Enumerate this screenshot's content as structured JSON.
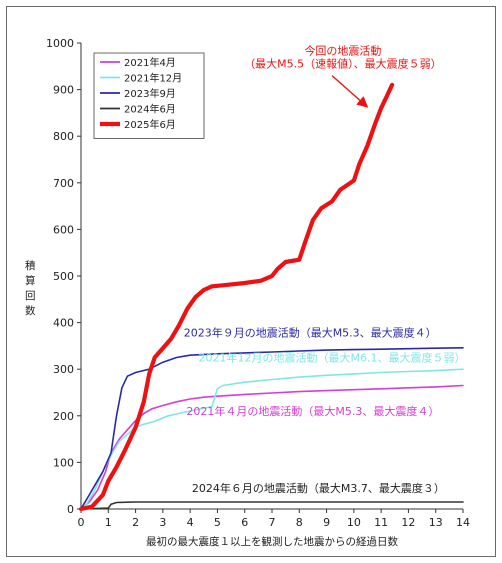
{
  "chart_data": {
    "type": "line",
    "xlabel": "最初の最大震度１以上を観測した地震からの経過日数",
    "ylabel": "積算回数",
    "xlim": [
      0,
      14
    ],
    "ylim": [
      0,
      1000
    ],
    "x_ticks": [
      "0",
      "1",
      "2",
      "3",
      "4",
      "5",
      "6",
      "7",
      "8",
      "9",
      "10",
      "11",
      "12",
      "13",
      "14"
    ],
    "y_ticks": [
      "0",
      "100",
      "200",
      "300",
      "400",
      "500",
      "600",
      "700",
      "800",
      "900",
      "1000"
    ],
    "grid": false,
    "legend_position": "top-left",
    "series": [
      {
        "name": "2021年4月",
        "color": "#d63cd6",
        "points": [
          [
            0,
            0
          ],
          [
            0.1,
            5
          ],
          [
            0.3,
            15
          ],
          [
            0.6,
            40
          ],
          [
            0.9,
            80
          ],
          [
            1.1,
            120
          ],
          [
            1.4,
            150
          ],
          [
            1.7,
            170
          ],
          [
            2.0,
            190
          ],
          [
            2.3,
            205
          ],
          [
            2.6,
            215
          ],
          [
            3.0,
            222
          ],
          [
            3.5,
            230
          ],
          [
            4.0,
            236
          ],
          [
            4.5,
            240
          ],
          [
            5.0,
            242
          ],
          [
            6.0,
            246
          ],
          [
            7.0,
            249
          ],
          [
            8.0,
            252
          ],
          [
            9.0,
            254
          ],
          [
            10.0,
            256
          ],
          [
            11.0,
            258
          ],
          [
            12.0,
            260
          ],
          [
            13.0,
            262
          ],
          [
            14.0,
            265
          ]
        ]
      },
      {
        "name": "2021年12月",
        "color": "#7fe6e6",
        "points": [
          [
            0,
            0
          ],
          [
            0.2,
            10
          ],
          [
            0.5,
            40
          ],
          [
            0.8,
            80
          ],
          [
            1.1,
            115
          ],
          [
            1.4,
            145
          ],
          [
            1.7,
            160
          ],
          [
            2.0,
            175
          ],
          [
            2.3,
            182
          ],
          [
            2.7,
            188
          ],
          [
            3.2,
            200
          ],
          [
            3.8,
            208
          ],
          [
            4.3,
            214
          ],
          [
            4.8,
            220
          ],
          [
            4.9,
            240
          ],
          [
            5.0,
            258
          ],
          [
            5.2,
            265
          ],
          [
            6.0,
            272
          ],
          [
            7.0,
            278
          ],
          [
            8.0,
            283
          ],
          [
            9.0,
            287
          ],
          [
            10.0,
            290
          ],
          [
            11.0,
            293
          ],
          [
            12.0,
            295
          ],
          [
            13.0,
            297
          ],
          [
            14.0,
            300
          ]
        ]
      },
      {
        "name": "2023年9月",
        "color": "#2a2aa8",
        "points": [
          [
            0,
            0
          ],
          [
            0.1,
            10
          ],
          [
            0.3,
            30
          ],
          [
            0.5,
            50
          ],
          [
            0.8,
            80
          ],
          [
            1.1,
            120
          ],
          [
            1.3,
            200
          ],
          [
            1.5,
            260
          ],
          [
            1.7,
            285
          ],
          [
            2.0,
            293
          ],
          [
            2.5,
            300
          ],
          [
            3.0,
            315
          ],
          [
            3.5,
            325
          ],
          [
            4.0,
            330
          ],
          [
            5.0,
            333
          ],
          [
            6.0,
            335
          ],
          [
            7.0,
            337
          ],
          [
            8.0,
            339
          ],
          [
            9.0,
            341
          ],
          [
            10.0,
            342
          ],
          [
            11.0,
            343
          ],
          [
            12.0,
            344
          ],
          [
            13.0,
            345
          ],
          [
            14.0,
            346
          ]
        ]
      },
      {
        "name": "2024年6月",
        "color": "#333333",
        "points": [
          [
            0,
            0
          ],
          [
            1.0,
            2
          ],
          [
            1.1,
            10
          ],
          [
            1.3,
            14
          ],
          [
            2.0,
            15
          ],
          [
            14.0,
            15
          ]
        ]
      },
      {
        "name": "2025年6月",
        "color": "#ee1111",
        "points": [
          [
            0,
            0
          ],
          [
            0.4,
            5
          ],
          [
            0.8,
            30
          ],
          [
            1.0,
            60
          ],
          [
            1.3,
            90
          ],
          [
            1.6,
            125
          ],
          [
            2.0,
            175
          ],
          [
            2.3,
            230
          ],
          [
            2.5,
            290
          ],
          [
            2.7,
            325
          ],
          [
            3.0,
            345
          ],
          [
            3.3,
            365
          ],
          [
            3.6,
            395
          ],
          [
            3.9,
            430
          ],
          [
            4.2,
            455
          ],
          [
            4.5,
            470
          ],
          [
            4.8,
            478
          ],
          [
            5.2,
            480
          ],
          [
            6.0,
            485
          ],
          [
            6.6,
            490
          ],
          [
            7.0,
            500
          ],
          [
            7.2,
            515
          ],
          [
            7.5,
            530
          ],
          [
            8.0,
            535
          ],
          [
            8.2,
            570
          ],
          [
            8.5,
            620
          ],
          [
            8.8,
            645
          ],
          [
            9.2,
            660
          ],
          [
            9.5,
            685
          ],
          [
            10.0,
            705
          ],
          [
            10.2,
            740
          ],
          [
            10.5,
            780
          ],
          [
            10.8,
            830
          ],
          [
            11.0,
            860
          ],
          [
            11.2,
            885
          ],
          [
            11.4,
            910
          ]
        ]
      }
    ],
    "annotations": [
      {
        "text": "今回の地震活動",
        "x": 9.6,
        "y": 975,
        "color": "#ee1111"
      },
      {
        "text": "（最大M5.5（速報値）、最大震度５弱）",
        "x": 9.6,
        "y": 947,
        "color": "#ee1111"
      },
      {
        "text": "2023年９月の地震活動（最大M5.3、最大震度４）",
        "x": 8.4,
        "y": 370,
        "color": "#2a2aa8"
      },
      {
        "text": "2021年12月の地震活動（最大M6.1、最大震度５弱）",
        "x": 9.2,
        "y": 316,
        "color": "#7fe6e6"
      },
      {
        "text": "2021年４月の地震活動（最大M5.3、最大震度４）",
        "x": 8.5,
        "y": 202,
        "color": "#d63cd6"
      },
      {
        "text": "2024年６月の地震活動（最大M3.7、最大震度３）",
        "x": 8.7,
        "y": 36,
        "color": "#222222"
      }
    ]
  }
}
